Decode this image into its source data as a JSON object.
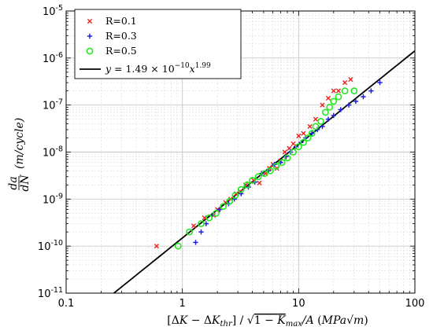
{
  "chart_data": {
    "type": "scatter",
    "title": "",
    "xlabel": "[ΔK − ΔK_thr] / √(1 − K_max/A) (MPa√m)",
    "ylabel": "da/dN (m/cycle)",
    "xscale": "log",
    "yscale": "log",
    "xlim": [
      0.1,
      100
    ],
    "ylim": [
      1e-11,
      1e-05
    ],
    "grid": true,
    "legend_position": "top-left",
    "x_ticks": [
      {
        "value": 0.1,
        "label": "0.1"
      },
      {
        "value": 1,
        "label": "1"
      },
      {
        "value": 10,
        "label": "10"
      },
      {
        "value": 100,
        "label": "100"
      }
    ],
    "y_ticks": [
      {
        "value": 1e-11,
        "base": "10",
        "exp": "-11"
      },
      {
        "value": 1e-10,
        "base": "10",
        "exp": "-10"
      },
      {
        "value": 1e-09,
        "base": "10",
        "exp": "-9"
      },
      {
        "value": 1e-08,
        "base": "10",
        "exp": "-8"
      },
      {
        "value": 1e-07,
        "base": "10",
        "exp": "-7"
      },
      {
        "value": 1e-06,
        "base": "10",
        "exp": "-6"
      },
      {
        "value": 1e-05,
        "base": "10",
        "exp": "-5"
      }
    ],
    "series": [
      {
        "name": "R=0.1",
        "marker": "x",
        "color": "#e8231f",
        "points": [
          [
            0.6,
            1e-10
          ],
          [
            1.25,
            2.7e-10
          ],
          [
            1.55,
            4e-10
          ],
          [
            1.85,
            4.5e-10
          ],
          [
            2.0,
            6e-10
          ],
          [
            2.35,
            8.5e-10
          ],
          [
            2.6,
            1e-09
          ],
          [
            2.9,
            1.3e-09
          ],
          [
            3.15,
            1.45e-09
          ],
          [
            3.5,
            2e-09
          ],
          [
            4.1,
            2.5e-09
          ],
          [
            4.6,
            2.2e-09
          ],
          [
            5.2,
            3.5e-09
          ],
          [
            5.6,
            4.5e-09
          ],
          [
            6.0,
            5.5e-09
          ],
          [
            6.5,
            4.5e-09
          ],
          [
            7.0,
            6.5e-09
          ],
          [
            7.6,
            1e-08
          ],
          [
            8.3,
            1.2e-08
          ],
          [
            9.0,
            1.5e-08
          ],
          [
            10.0,
            2.2e-08
          ],
          [
            11.0,
            2.5e-08
          ],
          [
            12.5,
            3.5e-08
          ],
          [
            14.0,
            5e-08
          ],
          [
            16.0,
            1e-07
          ],
          [
            18.0,
            1.4e-07
          ],
          [
            20.0,
            2e-07
          ],
          [
            22.0,
            2e-07
          ],
          [
            25.0,
            3e-07
          ],
          [
            28.0,
            3.5e-07
          ]
        ]
      },
      {
        "name": "R=0.3",
        "marker": "+",
        "color": "#1f1fe0",
        "points": [
          [
            1.3,
            1.2e-10
          ],
          [
            1.45,
            2e-10
          ],
          [
            1.6,
            3e-10
          ],
          [
            1.8,
            4.5e-10
          ],
          [
            2.1,
            6e-10
          ],
          [
            2.5,
            8e-10
          ],
          [
            2.8,
            1e-09
          ],
          [
            3.2,
            1.3e-09
          ],
          [
            3.7,
            1.8e-09
          ],
          [
            4.2,
            2.3e-09
          ],
          [
            4.8,
            3.5e-09
          ],
          [
            5.5,
            4e-09
          ],
          [
            6.2,
            5.5e-09
          ],
          [
            7.0,
            6e-09
          ],
          [
            7.8,
            8e-09
          ],
          [
            8.5,
            1e-08
          ],
          [
            9.5,
            1.3e-08
          ],
          [
            10.5,
            1.6e-08
          ],
          [
            11.5,
            2e-08
          ],
          [
            13.0,
            2.5e-08
          ],
          [
            14.5,
            3e-08
          ],
          [
            16.0,
            3.5e-08
          ],
          [
            18.0,
            5e-08
          ],
          [
            20.0,
            6e-08
          ],
          [
            23.0,
            8e-08
          ],
          [
            27.0,
            1e-07
          ],
          [
            31.0,
            1.2e-07
          ],
          [
            36.0,
            1.5e-07
          ],
          [
            42.0,
            2e-07
          ],
          [
            50.0,
            3e-07
          ]
        ]
      },
      {
        "name": "R=0.5",
        "marker": "o",
        "color": "#22e822",
        "points": [
          [
            0.92,
            1e-10
          ],
          [
            1.15,
            2e-10
          ],
          [
            1.45,
            3e-10
          ],
          [
            1.7,
            4e-10
          ],
          [
            1.95,
            5e-10
          ],
          [
            2.25,
            7e-10
          ],
          [
            2.55,
            9e-10
          ],
          [
            2.85,
            1.2e-09
          ],
          [
            3.2,
            1.6e-09
          ],
          [
            3.6,
            2e-09
          ],
          [
            4.0,
            2.5e-09
          ],
          [
            4.5,
            3e-09
          ],
          [
            5.1,
            3.5e-09
          ],
          [
            5.7,
            4e-09
          ],
          [
            6.4,
            5e-09
          ],
          [
            7.2,
            6e-09
          ],
          [
            8.0,
            7.5e-09
          ],
          [
            9.0,
            1e-08
          ],
          [
            10.0,
            1.3e-08
          ],
          [
            11.0,
            1.6e-08
          ],
          [
            12.0,
            2e-08
          ],
          [
            13.0,
            2.5e-08
          ],
          [
            14.0,
            3.5e-08
          ],
          [
            15.5,
            4.5e-08
          ],
          [
            17.0,
            7e-08
          ],
          [
            18.5,
            9e-08
          ],
          [
            20.0,
            1.2e-07
          ],
          [
            22.0,
            1.5e-07
          ],
          [
            25.0,
            2e-07
          ],
          [
            30.0,
            2e-07
          ]
        ]
      }
    ],
    "fit_line": {
      "name": "y = 1.49 × 10^{-10} x^{1.99}",
      "label_parts": {
        "lhs": "y = 1.49 × 10",
        "exp1": "−10",
        "mid": "x",
        "exp2": "1.99"
      },
      "coefficient": 1.49e-10,
      "exponent": 1.99,
      "color": "#000000"
    }
  }
}
